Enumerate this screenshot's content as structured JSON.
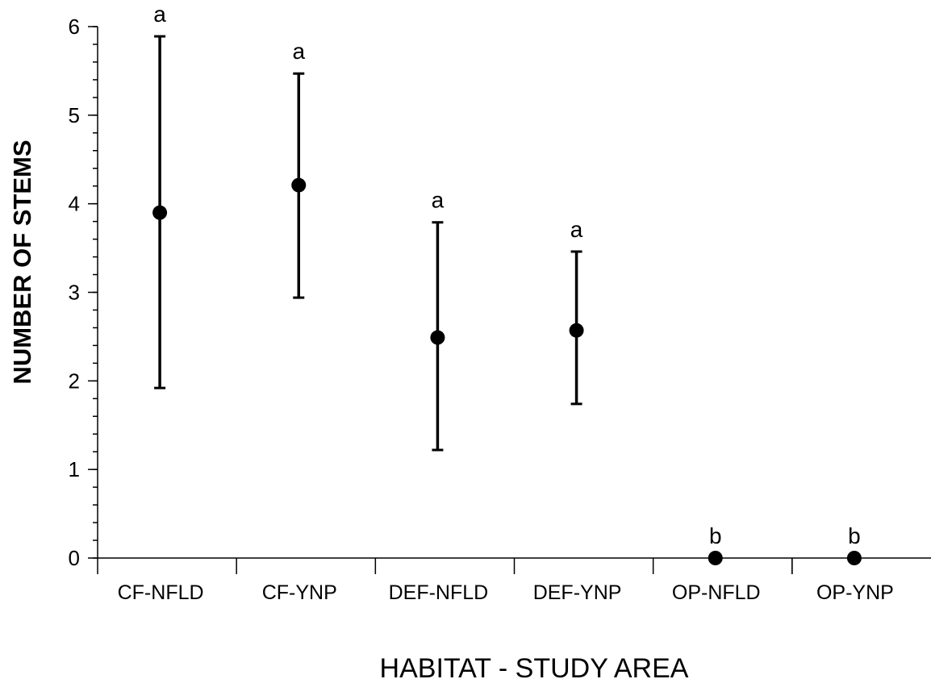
{
  "chart_data": {
    "type": "scatter",
    "title": "",
    "xlabel": "HABITAT - STUDY AREA",
    "ylabel": "NUMBER OF STEMS",
    "ylim": [
      0,
      6
    ],
    "yticks": [
      0,
      1,
      2,
      3,
      4,
      5,
      6
    ],
    "y_minor_step": 0.2,
    "grid": false,
    "legend": "none",
    "categories": [
      "CF-NFLD",
      "CF-YNP",
      "DEF-NFLD",
      "DEF-YNP",
      "OP-NFLD",
      "OP-YNP"
    ],
    "series": [
      {
        "values": [
          3.9,
          4.21,
          2.49,
          2.57,
          0.0,
          0.0
        ],
        "error_low": [
          1.92,
          2.94,
          1.22,
          1.74,
          0.0,
          0.0
        ],
        "error_high": [
          5.89,
          5.47,
          3.79,
          3.46,
          0.0,
          0.0
        ],
        "significance_labels": [
          "a",
          "a",
          "a",
          "a",
          "b",
          "b"
        ],
        "marker_color": "#000000"
      }
    ]
  }
}
